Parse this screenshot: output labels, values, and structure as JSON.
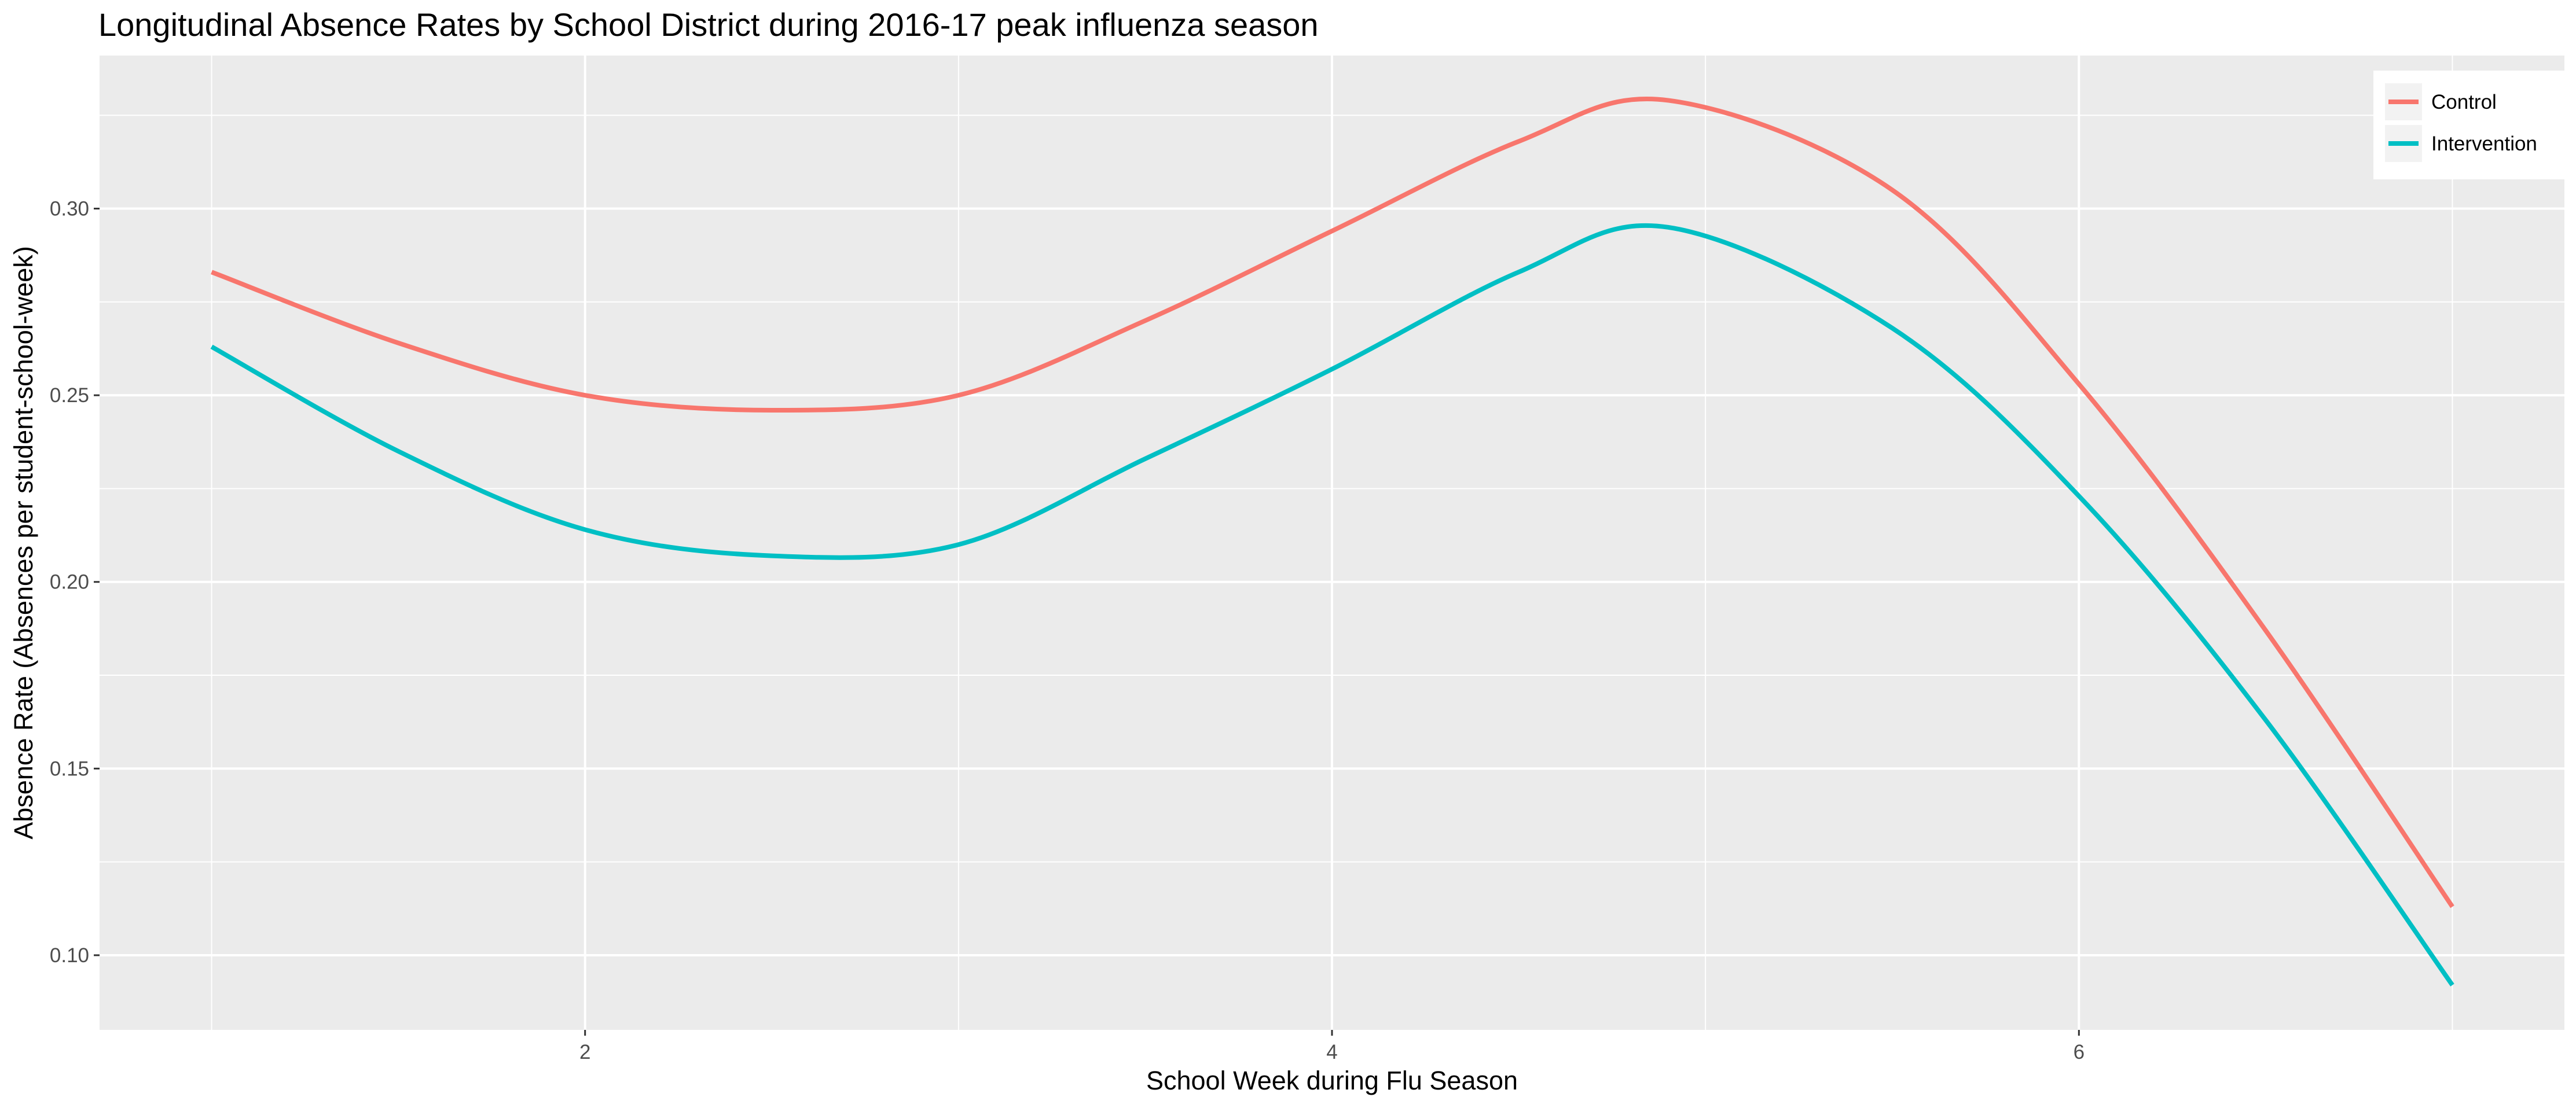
{
  "chart_data": {
    "type": "line",
    "title": "Longitudinal Absence Rates by School District during 2016-17 peak influenza season",
    "xlabel": "School Week during Flu Season",
    "ylabel": "Absence Rate (Absences per student-school-week)",
    "xlim": [
      0.7,
      7.3
    ],
    "ylim": [
      0.08,
      0.341
    ],
    "x_ticks": [
      2,
      4,
      6
    ],
    "x_tick_labels": [
      "2",
      "4",
      "6"
    ],
    "y_ticks": [
      0.1,
      0.15,
      0.2,
      0.25,
      0.3
    ],
    "y_tick_labels": [
      "0.10",
      "0.15",
      "0.20",
      "0.25",
      "0.30"
    ],
    "grid": true,
    "legend_position": "top-right",
    "x": [
      1,
      1.5,
      2,
      2.5,
      3,
      3.5,
      4,
      4.5,
      4.9,
      5.5,
      6,
      6.5,
      7
    ],
    "series": [
      {
        "name": "Control",
        "color": "#F8766D",
        "values": [
          0.283,
          0.264,
          0.25,
          0.246,
          0.25,
          0.27,
          0.294,
          0.318,
          0.329,
          0.305,
          0.253,
          0.187,
          0.113
        ]
      },
      {
        "name": "Intervention",
        "color": "#00BFC4",
        "values": [
          0.263,
          0.235,
          0.214,
          0.207,
          0.21,
          0.233,
          0.257,
          0.283,
          0.295,
          0.268,
          0.223,
          0.163,
          0.092
        ]
      }
    ]
  }
}
